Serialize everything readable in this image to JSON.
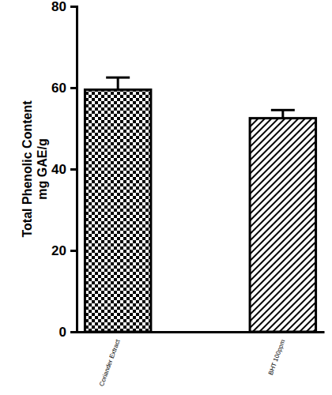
{
  "chart_data": {
    "type": "bar",
    "y_label": [
      "Total Phenolic Content",
      "mg GAE/g"
    ],
    "categories": [
      "Coriander Extract",
      "BHT 100ppm"
    ],
    "values": [
      59.5,
      52.5
    ],
    "errors": [
      3,
      2
    ],
    "color": "#000000",
    "ylim": [
      0,
      80
    ],
    "yticks": [
      0,
      20,
      40,
      60,
      80
    ],
    "grid": false
  }
}
